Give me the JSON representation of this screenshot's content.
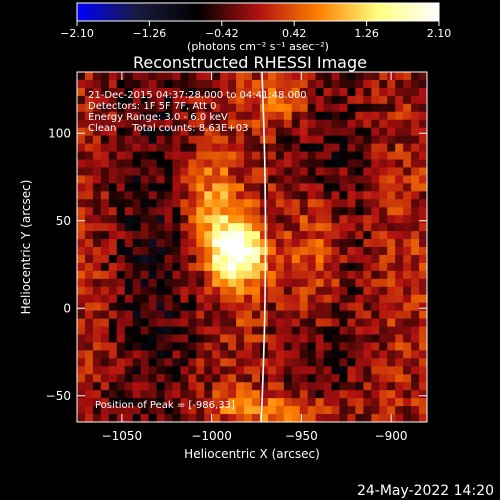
{
  "chart_data": {
    "type": "heatmap",
    "title": "Reconstructed RHESSI Image",
    "xlabel": "Heliocentric X (arcsec)",
    "ylabel": "Heliocentric Y (arcsec)",
    "xlim": [
      -1075,
      -880
    ],
    "ylim": [
      -65,
      135
    ],
    "x_ticks": [
      -1050,
      -1000,
      -950,
      -900
    ],
    "x_tick_labels": [
      "−1050",
      "−1000",
      "−950",
      "−900"
    ],
    "y_ticks": [
      -50,
      0,
      50,
      100
    ],
    "y_tick_labels": [
      "−50",
      "0",
      "50",
      "100"
    ],
    "colorbar": {
      "range": [
        -2.1,
        2.1
      ],
      "ticks": [
        -2.1,
        -1.26,
        -0.42,
        0.42,
        1.26,
        2.1
      ],
      "tick_labels": [
        "−2.10",
        "−1.26",
        "−0.42",
        "0.42",
        "1.26",
        "2.10"
      ],
      "units_label": "(photons cm⁻² s⁻¹ asec⁻²)",
      "colors": [
        "#0000ff",
        "#1a1a40",
        "#000000",
        "#b01010",
        "#ff8000",
        "#ffff80",
        "#ffffff"
      ]
    },
    "annotations": [
      "21-Dec-2015 04:37:28.000 to 04:41:48.000",
      "Detectors: 1F 5F 7F, Att 0",
      "Energy Range: 3.0 - 6.0 keV",
      "Clean     Total counts: 8.63E+03"
    ],
    "peak_label": "Position of Peak = [-986,33]",
    "peak_position": [
      -986,
      33
    ],
    "limb_color": "#ffffff",
    "grid": false
  },
  "footer": {
    "timestamp": "24-May-2022 14:20"
  }
}
